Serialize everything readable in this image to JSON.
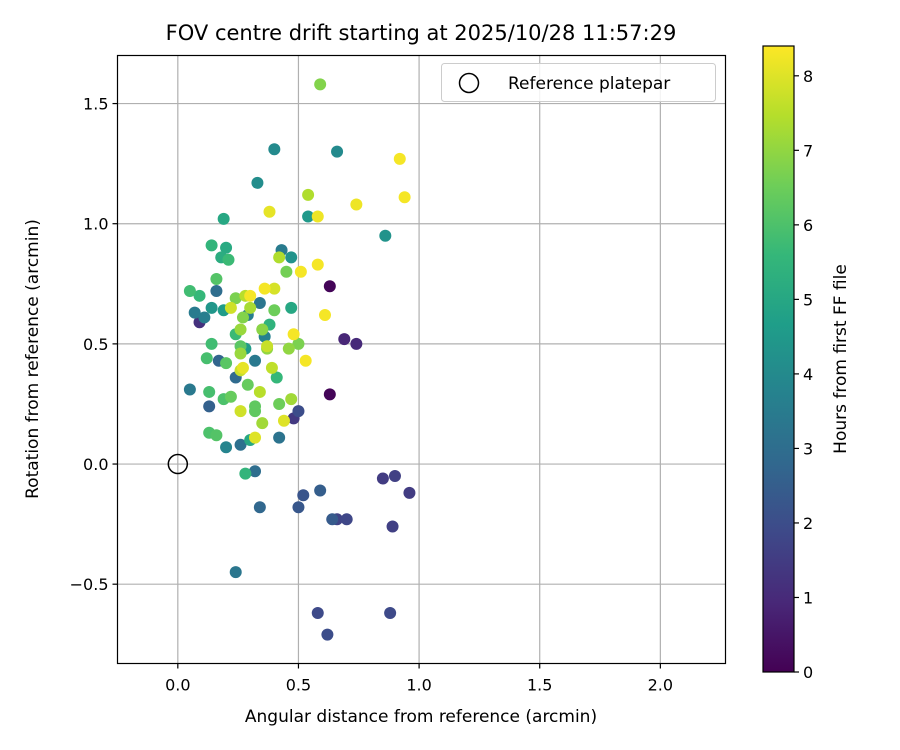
{
  "chart_data": {
    "type": "scatter",
    "title": "FOV centre drift starting at 2025/10/28 11:57:29",
    "xlabel": "Angular distance from reference (arcmin)",
    "ylabel": "Rotation from reference (arcmin)",
    "xlim": [
      -0.25,
      2.27
    ],
    "ylim": [
      -0.83,
      1.7
    ],
    "xticks": [
      0.0,
      0.5,
      1.0,
      1.5,
      2.0
    ],
    "xtick_labels": [
      "0.0",
      "0.5",
      "1.0",
      "1.5",
      "2.0"
    ],
    "yticks": [
      -0.5,
      0.0,
      0.5,
      1.0,
      1.5
    ],
    "ytick_labels": [
      "−0.5",
      "0.0",
      "0.5",
      "1.0",
      "1.5"
    ],
    "grid": true,
    "legend": {
      "label": "Reference platepar",
      "position": "top-right"
    },
    "reference_point": {
      "x": 0.0,
      "y": 0.0
    },
    "colorbar": {
      "label": "Hours from first FF file",
      "range": [
        0,
        8.4
      ],
      "ticks": [
        0,
        1,
        2,
        3,
        4,
        5,
        6,
        7,
        8
      ],
      "tick_labels": [
        "0",
        "1",
        "2",
        "3",
        "4",
        "5",
        "6",
        "7",
        "8"
      ],
      "colormap": "viridis"
    },
    "colormap_stops": [
      "#440154",
      "#482878",
      "#3e4989",
      "#31688e",
      "#26828e",
      "#1f9e89",
      "#35b779",
      "#6ece58",
      "#b5de2b",
      "#fde725"
    ],
    "points": [
      {
        "x": 0.63,
        "y": 0.74,
        "h": 0.1
      },
      {
        "x": 0.63,
        "y": 0.29,
        "h": 0.1
      },
      {
        "x": 0.69,
        "y": 0.52,
        "h": 0.9
      },
      {
        "x": 0.74,
        "y": 0.5,
        "h": 1.0
      },
      {
        "x": 0.09,
        "y": 0.59,
        "h": 1.2
      },
      {
        "x": 0.48,
        "y": 0.19,
        "h": 1.4
      },
      {
        "x": 0.96,
        "y": -0.12,
        "h": 1.5
      },
      {
        "x": 0.85,
        "y": -0.06,
        "h": 1.5
      },
      {
        "x": 0.9,
        "y": -0.05,
        "h": 1.6
      },
      {
        "x": 0.89,
        "y": -0.26,
        "h": 1.6
      },
      {
        "x": 0.66,
        "y": -0.23,
        "h": 1.7
      },
      {
        "x": 0.7,
        "y": -0.23,
        "h": 1.8
      },
      {
        "x": 0.58,
        "y": -0.62,
        "h": 1.9
      },
      {
        "x": 0.88,
        "y": -0.62,
        "h": 1.9
      },
      {
        "x": 0.62,
        "y": -0.71,
        "h": 2.0
      },
      {
        "x": 0.5,
        "y": 0.22,
        "h": 2.0
      },
      {
        "x": 0.52,
        "y": -0.13,
        "h": 2.2
      },
      {
        "x": 0.5,
        "y": -0.18,
        "h": 2.3
      },
      {
        "x": 0.59,
        "y": -0.11,
        "h": 2.5
      },
      {
        "x": 0.64,
        "y": -0.23,
        "h": 2.4
      },
      {
        "x": 0.13,
        "y": 0.24,
        "h": 2.6
      },
      {
        "x": 0.17,
        "y": 0.43,
        "h": 2.7
      },
      {
        "x": 0.34,
        "y": -0.18,
        "h": 2.8
      },
      {
        "x": 0.32,
        "y": -0.03,
        "h": 3.0
      },
      {
        "x": 0.24,
        "y": 0.36,
        "h": 2.9
      },
      {
        "x": 0.16,
        "y": 0.72,
        "h": 3.0
      },
      {
        "x": 0.26,
        "y": 0.08,
        "h": 3.1
      },
      {
        "x": 0.42,
        "y": 0.11,
        "h": 3.2
      },
      {
        "x": 0.24,
        "y": -0.45,
        "h": 3.3
      },
      {
        "x": 0.32,
        "y": 0.43,
        "h": 3.4
      },
      {
        "x": 0.34,
        "y": 0.67,
        "h": 3.3
      },
      {
        "x": 0.43,
        "y": 0.89,
        "h": 3.5
      },
      {
        "x": 0.05,
        "y": 0.31,
        "h": 3.4
      },
      {
        "x": 0.07,
        "y": 0.63,
        "h": 3.5
      },
      {
        "x": 0.11,
        "y": 0.61,
        "h": 3.6
      },
      {
        "x": 0.36,
        "y": 0.53,
        "h": 3.7
      },
      {
        "x": 0.29,
        "y": 0.62,
        "h": 3.6
      },
      {
        "x": 0.2,
        "y": 0.07,
        "h": 3.8
      },
      {
        "x": 0.4,
        "y": 1.31,
        "h": 4.0
      },
      {
        "x": 0.66,
        "y": 1.3,
        "h": 4.0
      },
      {
        "x": 0.33,
        "y": 1.17,
        "h": 4.1
      },
      {
        "x": 0.86,
        "y": 0.95,
        "h": 4.3
      },
      {
        "x": 0.47,
        "y": 0.86,
        "h": 4.3
      },
      {
        "x": 0.54,
        "y": 1.03,
        "h": 4.5
      },
      {
        "x": 0.14,
        "y": 0.65,
        "h": 4.4
      },
      {
        "x": 0.19,
        "y": 0.64,
        "h": 4.6
      },
      {
        "x": 0.28,
        "y": 0.48,
        "h": 4.6
      },
      {
        "x": 0.19,
        "y": 1.02,
        "h": 5.0
      },
      {
        "x": 0.2,
        "y": 0.9,
        "h": 5.1
      },
      {
        "x": 0.18,
        "y": 0.86,
        "h": 5.2
      },
      {
        "x": 0.3,
        "y": 0.1,
        "h": 5.0
      },
      {
        "x": 0.47,
        "y": 0.65,
        "h": 5.0
      },
      {
        "x": 0.38,
        "y": 0.58,
        "h": 5.4
      },
      {
        "x": 0.28,
        "y": -0.04,
        "h": 5.5
      },
      {
        "x": 0.41,
        "y": 0.36,
        "h": 5.6
      },
      {
        "x": 0.09,
        "y": 0.7,
        "h": 5.6
      },
      {
        "x": 0.14,
        "y": 0.91,
        "h": 5.5
      },
      {
        "x": 0.21,
        "y": 0.85,
        "h": 5.7
      },
      {
        "x": 0.14,
        "y": 0.5,
        "h": 5.8
      },
      {
        "x": 0.12,
        "y": 0.44,
        "h": 5.9
      },
      {
        "x": 0.05,
        "y": 0.72,
        "h": 5.8
      },
      {
        "x": 0.24,
        "y": 0.54,
        "h": 5.7
      },
      {
        "x": 0.13,
        "y": 0.3,
        "h": 5.9
      },
      {
        "x": 0.19,
        "y": 0.27,
        "h": 6.0
      },
      {
        "x": 0.13,
        "y": 0.13,
        "h": 6.0
      },
      {
        "x": 0.16,
        "y": 0.12,
        "h": 6.1
      },
      {
        "x": 0.16,
        "y": 0.77,
        "h": 6.1
      },
      {
        "x": 0.2,
        "y": 0.42,
        "h": 6.2
      },
      {
        "x": 0.26,
        "y": 0.49,
        "h": 6.2
      },
      {
        "x": 0.32,
        "y": 0.24,
        "h": 6.3
      },
      {
        "x": 0.32,
        "y": 0.22,
        "h": 6.3
      },
      {
        "x": 0.29,
        "y": 0.33,
        "h": 6.4
      },
      {
        "x": 0.22,
        "y": 0.28,
        "h": 6.4
      },
      {
        "x": 0.42,
        "y": 0.25,
        "h": 6.5
      },
      {
        "x": 0.45,
        "y": 0.8,
        "h": 6.6
      },
      {
        "x": 0.4,
        "y": 0.64,
        "h": 6.5
      },
      {
        "x": 0.5,
        "y": 0.5,
        "h": 6.7
      },
      {
        "x": 0.59,
        "y": 1.58,
        "h": 6.8
      },
      {
        "x": 0.24,
        "y": 0.69,
        "h": 6.7
      },
      {
        "x": 0.27,
        "y": 0.61,
        "h": 6.8
      },
      {
        "x": 0.35,
        "y": 0.56,
        "h": 6.9
      },
      {
        "x": 0.37,
        "y": 0.48,
        "h": 7.0
      },
      {
        "x": 0.46,
        "y": 0.48,
        "h": 7.0
      },
      {
        "x": 0.26,
        "y": 0.46,
        "h": 7.1
      },
      {
        "x": 0.26,
        "y": 0.56,
        "h": 7.1
      },
      {
        "x": 0.35,
        "y": 0.17,
        "h": 7.2
      },
      {
        "x": 0.47,
        "y": 0.27,
        "h": 7.2
      },
      {
        "x": 0.3,
        "y": 0.65,
        "h": 7.3
      },
      {
        "x": 0.54,
        "y": 1.12,
        "h": 7.4
      },
      {
        "x": 0.42,
        "y": 0.86,
        "h": 7.4
      },
      {
        "x": 0.28,
        "y": 0.7,
        "h": 7.5
      },
      {
        "x": 0.34,
        "y": 0.3,
        "h": 7.5
      },
      {
        "x": 0.39,
        "y": 0.4,
        "h": 7.6
      },
      {
        "x": 0.37,
        "y": 0.49,
        "h": 7.7
      },
      {
        "x": 0.26,
        "y": 0.39,
        "h": 7.7
      },
      {
        "x": 0.26,
        "y": 0.22,
        "h": 7.8
      },
      {
        "x": 0.22,
        "y": 0.65,
        "h": 7.8
      },
      {
        "x": 0.4,
        "y": 0.73,
        "h": 7.9
      },
      {
        "x": 0.32,
        "y": 0.11,
        "h": 8.0
      },
      {
        "x": 0.44,
        "y": 0.18,
        "h": 8.0
      },
      {
        "x": 0.27,
        "y": 0.4,
        "h": 8.1
      },
      {
        "x": 0.38,
        "y": 1.05,
        "h": 8.1
      },
      {
        "x": 0.58,
        "y": 1.03,
        "h": 8.2
      },
      {
        "x": 0.74,
        "y": 1.08,
        "h": 8.2
      },
      {
        "x": 0.92,
        "y": 1.27,
        "h": 8.3
      },
      {
        "x": 0.94,
        "y": 1.11,
        "h": 8.3
      },
      {
        "x": 0.58,
        "y": 0.83,
        "h": 8.3
      },
      {
        "x": 0.51,
        "y": 0.8,
        "h": 8.3
      },
      {
        "x": 0.61,
        "y": 0.62,
        "h": 8.3
      },
      {
        "x": 0.48,
        "y": 0.54,
        "h": 8.3
      },
      {
        "x": 0.53,
        "y": 0.43,
        "h": 8.3
      },
      {
        "x": 0.3,
        "y": 0.7,
        "h": 8.3
      },
      {
        "x": 0.36,
        "y": 0.73,
        "h": 8.3
      }
    ]
  }
}
